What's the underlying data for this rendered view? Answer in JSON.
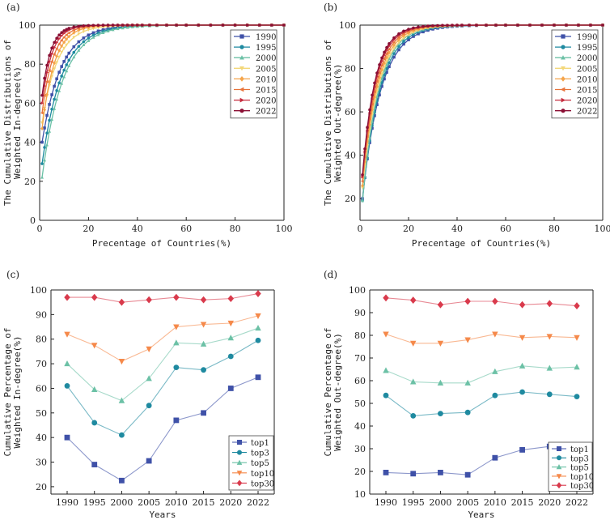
{
  "chart_data": [
    {
      "panel": "(a)",
      "type": "line",
      "ylabel_line1": "The Cumulative Distributions of",
      "ylabel_line2": "Weighted In-degree(%)",
      "xlabel": "Precentage of Countries(%)",
      "xlim": [
        0,
        100
      ],
      "ylim": [
        0,
        100
      ],
      "xticks": [
        "0",
        "20",
        "40",
        "60",
        "80",
        "100"
      ],
      "yticks": [
        "0",
        "20",
        "40",
        "60",
        "80",
        "100"
      ],
      "curve_points_x": [
        1,
        2,
        3,
        4,
        5,
        6,
        7,
        8,
        9,
        10,
        11,
        12,
        14,
        16,
        18,
        20,
        22,
        24,
        26,
        28,
        30,
        32,
        34,
        36,
        38,
        40,
        42,
        45,
        48,
        52,
        56,
        60,
        65,
        70,
        75,
        80,
        85,
        90,
        95,
        100
      ],
      "series": [
        {
          "name": "1990",
          "color": "#3f51a8",
          "marker": "square",
          "start": 40,
          "k": 0.13
        },
        {
          "name": "1995",
          "color": "#1f8aa0",
          "marker": "circle",
          "start": 29,
          "k": 0.125
        },
        {
          "name": "2000",
          "color": "#6cc1a6",
          "marker": "triangle-up",
          "start": 22,
          "k": 0.12
        },
        {
          "name": "2005",
          "color": "#f3d779",
          "marker": "triangle-down",
          "start": 50,
          "k": 0.16
        },
        {
          "name": "2010",
          "color": "#f5a54a",
          "marker": "diamond",
          "start": 47,
          "k": 0.2
        },
        {
          "name": "2015",
          "color": "#e8743b",
          "marker": "triangle-left",
          "start": 55,
          "k": 0.22
        },
        {
          "name": "2020",
          "color": "#c62d3f",
          "marker": "triangle-right",
          "start": 60,
          "k": 0.25
        },
        {
          "name": "2022",
          "color": "#8b0f34",
          "marker": "circle",
          "start": 64,
          "k": 0.28
        }
      ]
    },
    {
      "panel": "(b)",
      "type": "line",
      "ylabel_line1": "The Cumulative Distributions of",
      "ylabel_line2": "Weighted Out-degree(%)",
      "xlabel": "Precentage of Countries(%)",
      "xlim": [
        0,
        100
      ],
      "ylim": [
        10,
        100
      ],
      "xticks": [
        "0",
        "20",
        "40",
        "60",
        "80",
        "100"
      ],
      "yticks": [
        "20",
        "40",
        "60",
        "80",
        "100"
      ],
      "curve_points_x": [
        1,
        2,
        3,
        4,
        5,
        6,
        7,
        8,
        9,
        10,
        11,
        12,
        14,
        16,
        18,
        20,
        22,
        24,
        26,
        28,
        30,
        32,
        34,
        36,
        38,
        40,
        42,
        45,
        48,
        52,
        56,
        60,
        65,
        70,
        75,
        80,
        85,
        90,
        95,
        100
      ],
      "series": [
        {
          "name": "1990",
          "color": "#3f51a8",
          "marker": "square",
          "start": 20,
          "k": 0.13
        },
        {
          "name": "1995",
          "color": "#1f8aa0",
          "marker": "circle",
          "start": 19,
          "k": 0.14
        },
        {
          "name": "2000",
          "color": "#6cc1a6",
          "marker": "triangle-up",
          "start": 19,
          "k": 0.15
        },
        {
          "name": "2005",
          "color": "#f3d779",
          "marker": "triangle-down",
          "start": 25,
          "k": 0.15
        },
        {
          "name": "2010",
          "color": "#f5a54a",
          "marker": "diamond",
          "start": 26,
          "k": 0.16
        },
        {
          "name": "2015",
          "color": "#e8743b",
          "marker": "triangle-left",
          "start": 28,
          "k": 0.17
        },
        {
          "name": "2020",
          "color": "#c62d3f",
          "marker": "triangle-right",
          "start": 30,
          "k": 0.18
        },
        {
          "name": "2022",
          "color": "#8b0f34",
          "marker": "circle",
          "start": 31,
          "k": 0.19
        }
      ]
    },
    {
      "panel": "(c)",
      "type": "line",
      "ylabel_line1": "Cumulative Percentage of",
      "ylabel_line2": "Weighted In-degree(%)",
      "xlabel": "Years",
      "categories": [
        "1990",
        "1995",
        "2000",
        "2005",
        "2010",
        "2015",
        "2020",
        "2022"
      ],
      "ylim": [
        17,
        100
      ],
      "yticks": [
        "20",
        "30",
        "40",
        "50",
        "60",
        "70",
        "80",
        "90",
        "100"
      ],
      "series": [
        {
          "name": "top1",
          "color": "#3f51a8",
          "marker": "square",
          "values": [
            40,
            29,
            22.5,
            30.5,
            47,
            50,
            60,
            64.5
          ]
        },
        {
          "name": "top3",
          "color": "#1f8aa0",
          "marker": "circle",
          "values": [
            61,
            46,
            41,
            53,
            68.5,
            67.5,
            73,
            79.5
          ]
        },
        {
          "name": "top5",
          "color": "#6cc1a6",
          "marker": "triangle-up",
          "values": [
            70,
            59.5,
            55,
            64,
            78.5,
            78,
            80.5,
            84.5
          ]
        },
        {
          "name": "top10",
          "color": "#f5894a",
          "marker": "triangle-down",
          "values": [
            82,
            77.5,
            71,
            76,
            85,
            86,
            86.5,
            89.5
          ]
        },
        {
          "name": "top30",
          "color": "#d93a4c",
          "marker": "diamond",
          "values": [
            97,
            97,
            95,
            96,
            97,
            96,
            96.5,
            98.5
          ]
        }
      ]
    },
    {
      "panel": "(d)",
      "type": "line",
      "ylabel_line1": "Cumulative Percentage of",
      "ylabel_line2": "Weighted Out-degree(%)",
      "xlabel": "Years",
      "categories": [
        "1990",
        "1995",
        "2000",
        "2005",
        "2010",
        "2015",
        "2020",
        "2022"
      ],
      "ylim": [
        10,
        100
      ],
      "yticks": [
        "10",
        "20",
        "30",
        "40",
        "50",
        "60",
        "70",
        "80",
        "90",
        "100"
      ],
      "series": [
        {
          "name": "top1",
          "color": "#3f51a8",
          "marker": "square",
          "values": [
            19.5,
            19,
            19.5,
            18.5,
            26,
            29.5,
            31,
            31.5
          ]
        },
        {
          "name": "top3",
          "color": "#1f8aa0",
          "marker": "circle",
          "values": [
            53.5,
            44.5,
            45.5,
            46,
            53.5,
            55,
            54,
            53
          ]
        },
        {
          "name": "top5",
          "color": "#6cc1a6",
          "marker": "triangle-up",
          "values": [
            64.5,
            59.5,
            59,
            59,
            64,
            66.5,
            65.5,
            66
          ]
        },
        {
          "name": "top10",
          "color": "#f5894a",
          "marker": "triangle-down",
          "values": [
            80.5,
            76.5,
            76.5,
            78,
            80.5,
            79,
            79.5,
            79
          ]
        },
        {
          "name": "top30",
          "color": "#d93a4c",
          "marker": "diamond",
          "values": [
            96.5,
            95.5,
            93.5,
            95,
            95,
            93.5,
            94,
            93
          ]
        }
      ]
    }
  ]
}
